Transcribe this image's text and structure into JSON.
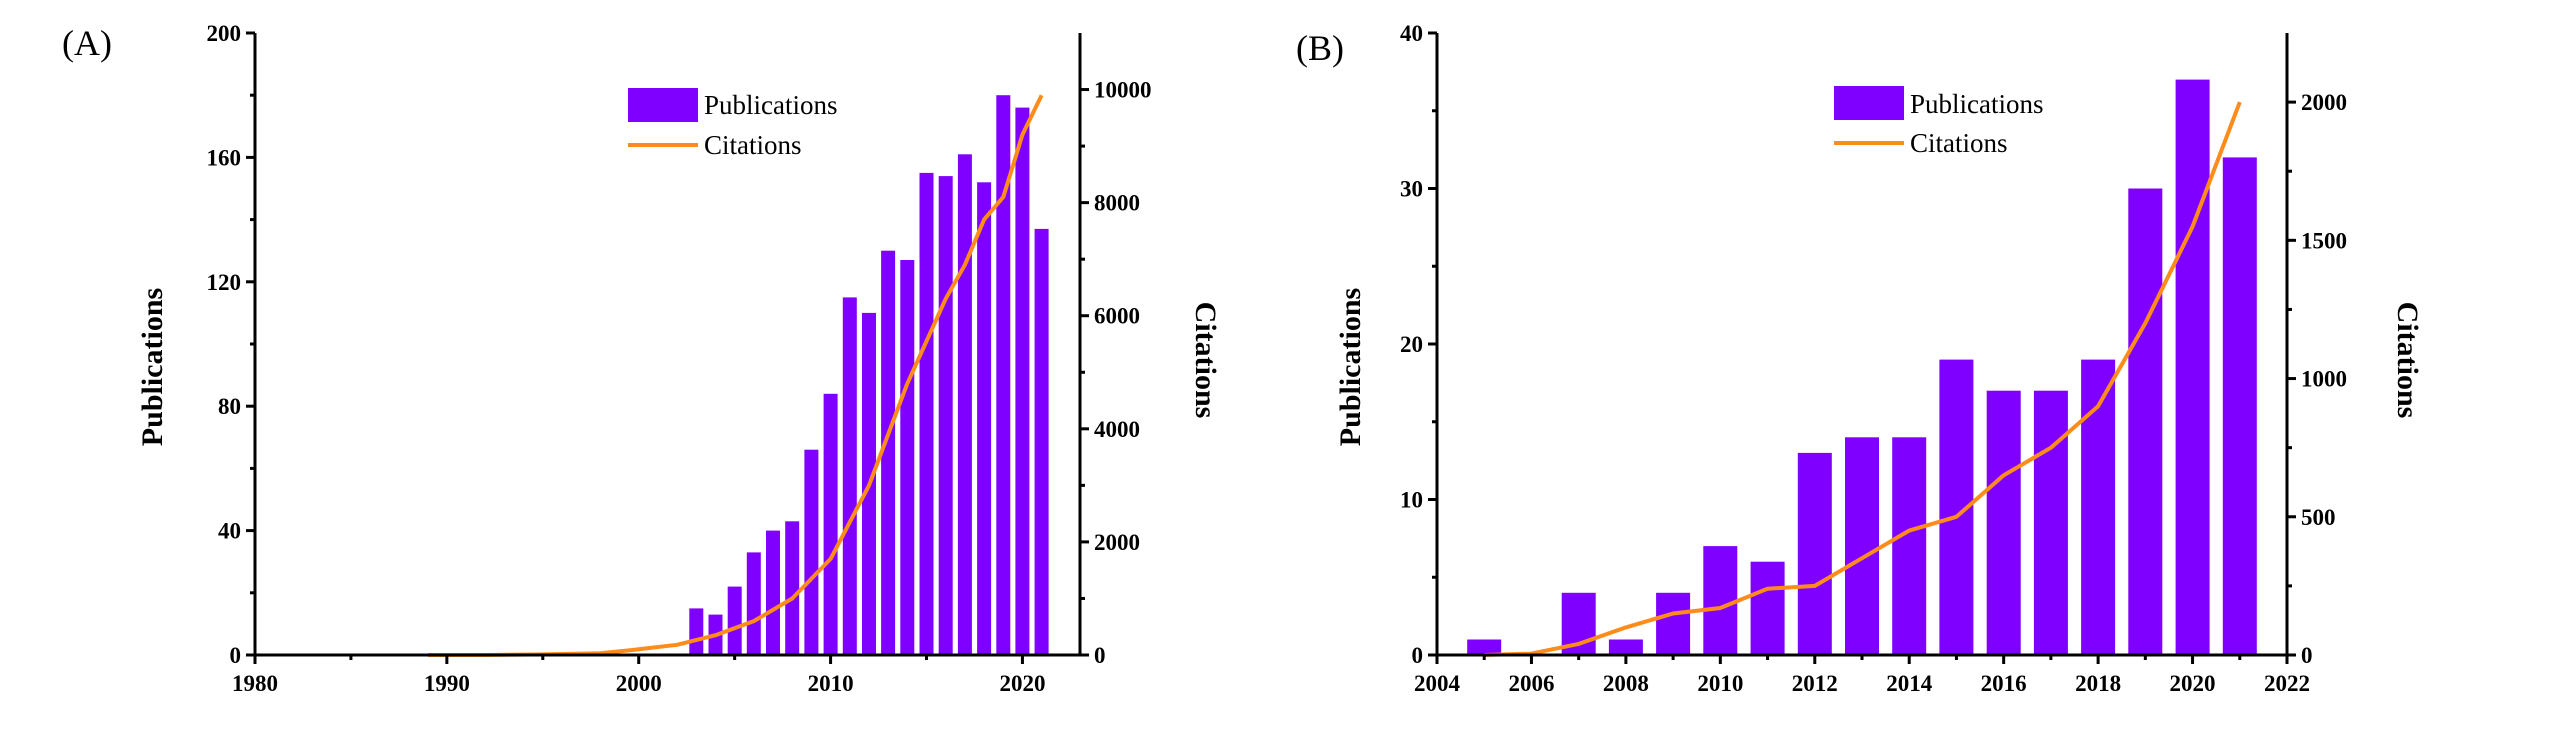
{
  "chart_data": [
    {
      "type": "bar+line",
      "panel_label": "(A)",
      "title": "",
      "xlabel": "",
      "ylabel": "Publications",
      "y2label": "Citations",
      "xlim": [
        1980,
        2023
      ],
      "ylim": [
        0,
        200
      ],
      "y2lim": [
        0,
        11000
      ],
      "xticks": [
        1980,
        1990,
        2000,
        2010,
        2020
      ],
      "yticks": [
        0,
        40,
        80,
        120,
        160,
        200
      ],
      "y2ticks": [
        0,
        2000,
        4000,
        6000,
        8000,
        10000
      ],
      "legend": {
        "position": "top-right",
        "bar_label": "Publications",
        "line_label": "Citations"
      },
      "bar_color": "#8000ff",
      "line_color": "#ff8c1a",
      "bars": {
        "name": "Publications",
        "x": [
          2003,
          2004,
          2005,
          2006,
          2007,
          2008,
          2009,
          2010,
          2011,
          2012,
          2013,
          2014,
          2015,
          2016,
          2017,
          2018,
          2019,
          2020,
          2021
        ],
        "values": [
          15,
          13,
          22,
          33,
          40,
          43,
          66,
          84,
          115,
          110,
          130,
          127,
          155,
          154,
          161,
          152,
          180,
          176,
          137
        ]
      },
      "line": {
        "name": "Citations",
        "x": [
          1989,
          1992,
          1995,
          1998,
          2000,
          2002,
          2004,
          2006,
          2008,
          2010,
          2012,
          2014,
          2016,
          2017,
          2018,
          2019,
          2020,
          2021
        ],
        "values": [
          0,
          0,
          10,
          30,
          100,
          180,
          350,
          600,
          1000,
          1700,
          3000,
          4800,
          6300,
          6900,
          7700,
          8100,
          9200,
          9900
        ]
      }
    },
    {
      "type": "bar+line",
      "panel_label": "(B)",
      "title": "",
      "xlabel": "",
      "ylabel": "Publications",
      "y2label": "Citations",
      "xlim": [
        2004,
        2022
      ],
      "ylim": [
        0,
        40
      ],
      "y2lim": [
        0,
        2250
      ],
      "xticks": [
        2004,
        2006,
        2008,
        2010,
        2012,
        2014,
        2016,
        2018,
        2020,
        2022
      ],
      "yticks": [
        0,
        10,
        20,
        30,
        40
      ],
      "y2ticks": [
        0,
        500,
        1000,
        1500,
        2000
      ],
      "legend": {
        "position": "top-right",
        "bar_label": "Publications",
        "line_label": "Citations"
      },
      "bar_color": "#8000ff",
      "line_color": "#ff8c1a",
      "bars": {
        "name": "Publications",
        "x": [
          2005,
          2006,
          2007,
          2008,
          2009,
          2010,
          2011,
          2012,
          2013,
          2014,
          2015,
          2016,
          2017,
          2018,
          2019,
          2020,
          2021
        ],
        "values": [
          1,
          0,
          4,
          1,
          4,
          7,
          6,
          13,
          14,
          14,
          19,
          17,
          17,
          19,
          30,
          37,
          32
        ]
      },
      "line": {
        "name": "Citations",
        "x": [
          2005,
          2006,
          2007,
          2008,
          2009,
          2010,
          2011,
          2012,
          2013,
          2014,
          2015,
          2016,
          2017,
          2018,
          2019,
          2020,
          2021
        ],
        "values": [
          0,
          5,
          40,
          100,
          150,
          170,
          240,
          250,
          350,
          450,
          500,
          650,
          750,
          900,
          1200,
          1550,
          2000
        ]
      }
    }
  ]
}
